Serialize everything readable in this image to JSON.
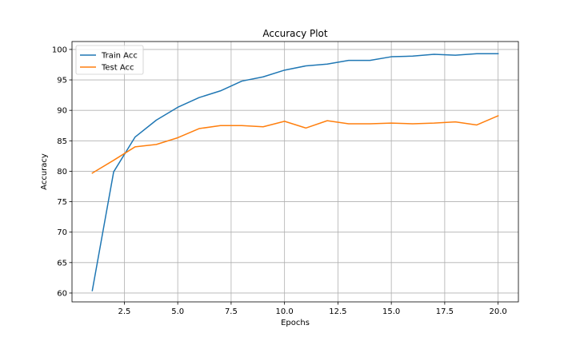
{
  "chart_data": {
    "type": "line",
    "title": "Accuracy Plot",
    "xlabel": "Epochs",
    "ylabel": "Accuracy",
    "xlim": [
      0.05,
      20.95
    ],
    "ylim": [
      58.55,
      101.3
    ],
    "xticks": [
      2.5,
      5.0,
      7.5,
      10.0,
      12.5,
      15.0,
      17.5,
      20.0
    ],
    "xtick_labels": [
      "2.5",
      "5.0",
      "7.5",
      "10.0",
      "12.5",
      "15.0",
      "17.5",
      "20.0"
    ],
    "yticks": [
      60,
      65,
      70,
      75,
      80,
      85,
      90,
      95,
      100
    ],
    "ytick_labels": [
      "60",
      "65",
      "70",
      "75",
      "80",
      "85",
      "90",
      "95",
      "100"
    ],
    "grid": true,
    "legend_position": "top-left",
    "x": [
      1,
      2,
      3,
      4,
      5,
      6,
      7,
      8,
      9,
      10,
      11,
      12,
      13,
      14,
      15,
      16,
      17,
      18,
      19,
      20
    ],
    "series": [
      {
        "name": "Train Acc",
        "color": "#1f77b4",
        "values": [
          60.4,
          79.9,
          85.6,
          88.4,
          90.5,
          92.1,
          93.2,
          94.8,
          95.5,
          96.6,
          97.3,
          97.6,
          98.2,
          98.2,
          98.8,
          98.9,
          99.2,
          99.05,
          99.3,
          99.3
        ]
      },
      {
        "name": "Test Acc",
        "color": "#ff7f0e",
        "values": [
          79.7,
          81.8,
          84.0,
          84.4,
          85.5,
          87.0,
          87.5,
          87.5,
          87.3,
          88.2,
          87.1,
          88.3,
          87.8,
          87.8,
          87.9,
          87.8,
          87.9,
          88.1,
          87.6,
          89.1
        ]
      }
    ]
  }
}
